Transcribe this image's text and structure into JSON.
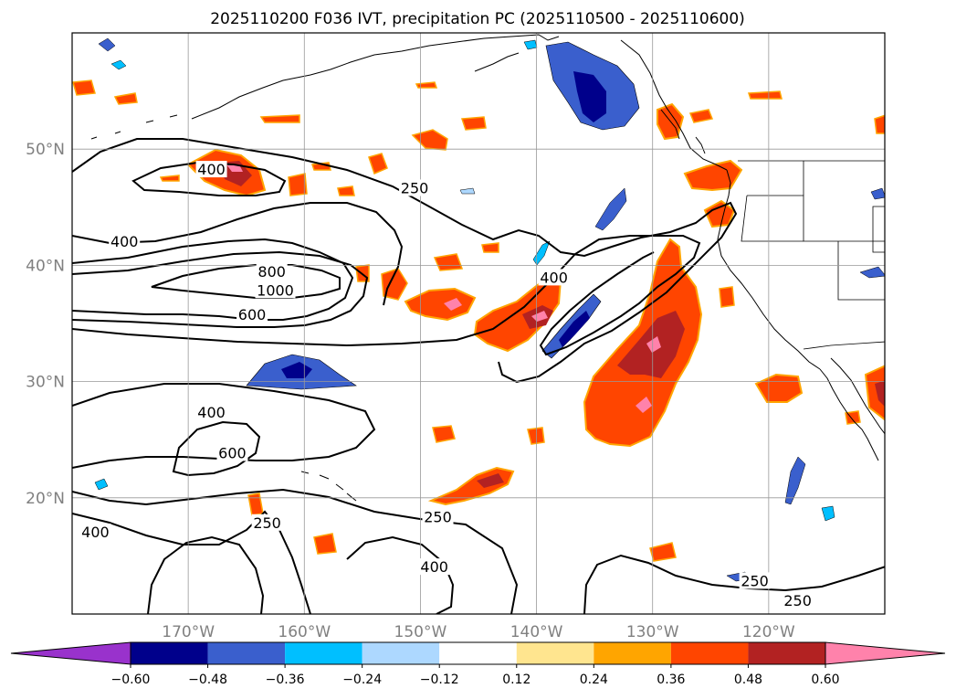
{
  "title": "2025110200 F036 IVT, precipitation PC (2025110500 - 2025110600)",
  "map": {
    "lon_range": [
      -180,
      -110
    ],
    "lat_range": [
      10,
      60
    ],
    "lat_ticks": [
      {
        "value": 20,
        "label": "20°N"
      },
      {
        "value": 30,
        "label": "30°N"
      },
      {
        "value": 40,
        "label": "40°N"
      },
      {
        "value": 50,
        "label": "50°N"
      }
    ],
    "lon_ticks": [
      {
        "value": -170,
        "label": "170°W"
      },
      {
        "value": -160,
        "label": "160°W"
      },
      {
        "value": -150,
        "label": "150°W"
      },
      {
        "value": -140,
        "label": "140°W"
      },
      {
        "value": -130,
        "label": "130°W"
      },
      {
        "value": -120,
        "label": "120°W"
      }
    ],
    "grid": true
  },
  "ivt_contours": {
    "levels": [
      250,
      400,
      600,
      800,
      1000
    ],
    "labels": [
      {
        "text": "400",
        "lon": -168,
        "lat": 48.2
      },
      {
        "text": "250",
        "lon": -150.5,
        "lat": 46.6
      },
      {
        "text": "400",
        "lon": -175.5,
        "lat": 42
      },
      {
        "text": "800",
        "lon": -162.8,
        "lat": 39.4
      },
      {
        "text": "1000",
        "lon": -162.5,
        "lat": 37.8
      },
      {
        "text": "600",
        "lon": -164.5,
        "lat": 35.7
      },
      {
        "text": "400",
        "lon": -138.5,
        "lat": 38.9
      },
      {
        "text": "400",
        "lon": -168,
        "lat": 27.3
      },
      {
        "text": "600",
        "lon": -166.2,
        "lat": 23.8
      },
      {
        "text": "250",
        "lon": -163.2,
        "lat": 17.8
      },
      {
        "text": "250",
        "lon": -148.5,
        "lat": 18.3
      },
      {
        "text": "400",
        "lon": -178,
        "lat": 17
      },
      {
        "text": "400",
        "lon": -148.8,
        "lat": 14
      },
      {
        "text": "250",
        "lon": -121.2,
        "lat": 12.8
      },
      {
        "text": "250",
        "lon": -117.5,
        "lat": 11.1
      }
    ]
  },
  "colorbar": {
    "tick_labels": [
      "−0.60",
      "−0.48",
      "−0.36",
      "−0.24",
      "−0.12",
      "0.12",
      "0.24",
      "0.36",
      "0.48",
      "0.60"
    ],
    "colors": [
      "#9932cc",
      "#00008b",
      "#3a5fcd",
      "#00bfff",
      "#add8ff",
      "#ffffff",
      "#ffe58f",
      "#ffa500",
      "#ff4500",
      "#b22222",
      "#ff82ab"
    ]
  }
}
